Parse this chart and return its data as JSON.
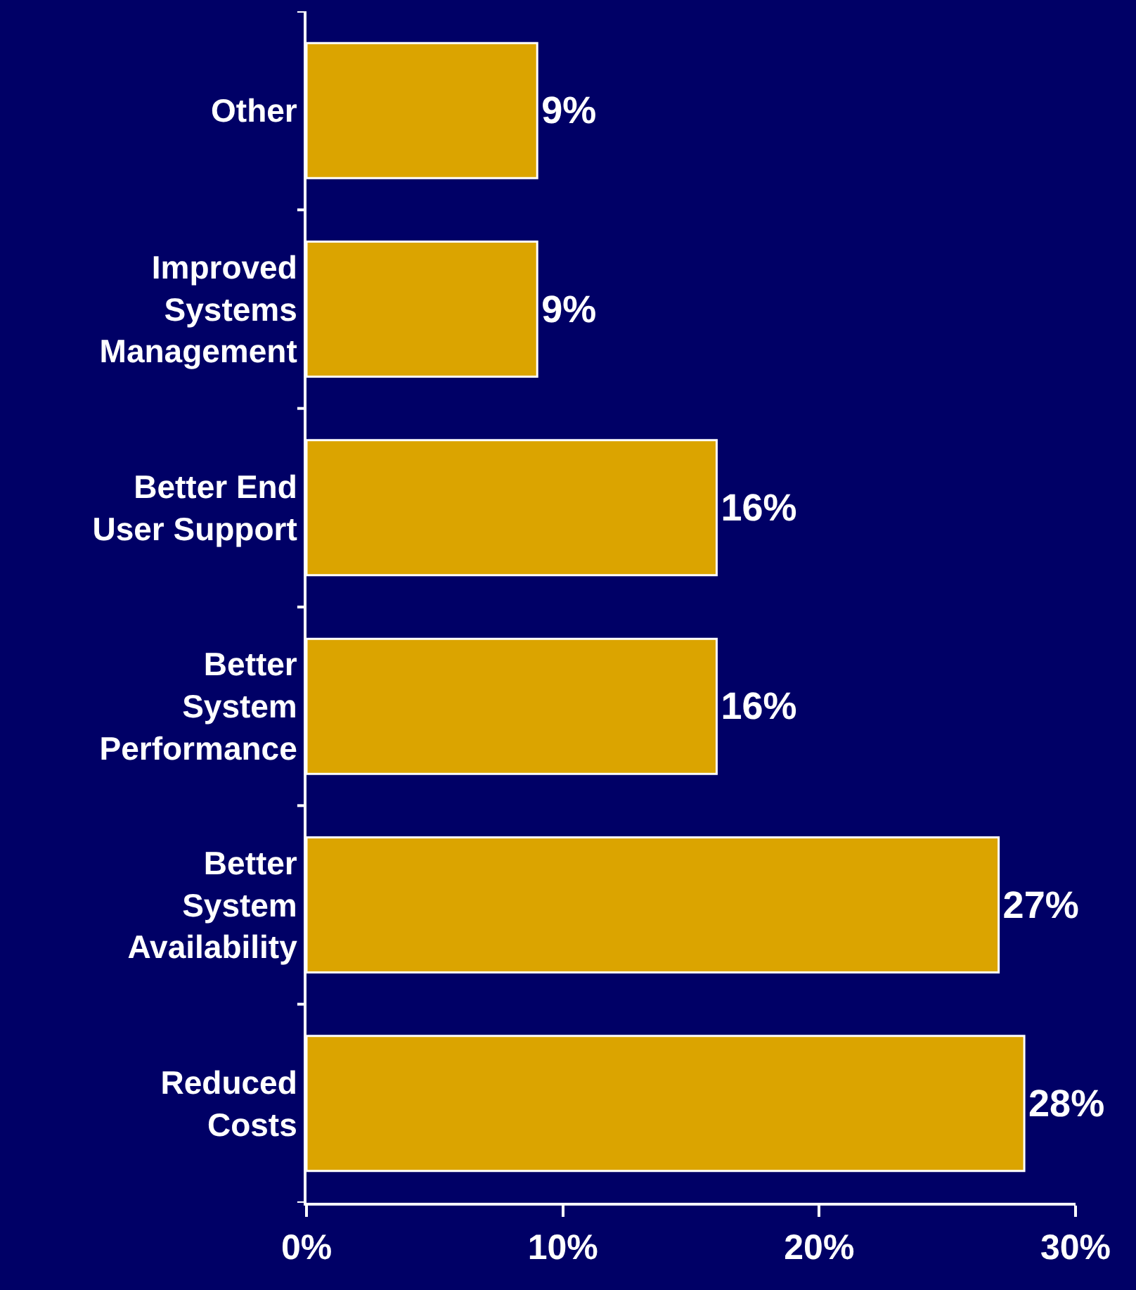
{
  "chart_data": {
    "type": "bar",
    "orientation": "horizontal",
    "categories": [
      "Other",
      "Improved Systems Management",
      "Better End User Support",
      "Better System Performance",
      "Better System Availability",
      "Reduced Costs"
    ],
    "values": [
      9,
      9,
      16,
      16,
      27,
      28
    ],
    "value_labels": [
      "9%",
      "9%",
      "16%",
      "16%",
      "27%",
      "28%"
    ],
    "color": "#dba400",
    "xlim": [
      0,
      30
    ],
    "xticks": [
      {
        "value": 0,
        "label": "0%"
      },
      {
        "value": 10,
        "label": "10%"
      },
      {
        "value": 20,
        "label": "20%"
      },
      {
        "value": 30,
        "label": "30%"
      }
    ],
    "grid": false,
    "legend": false
  }
}
